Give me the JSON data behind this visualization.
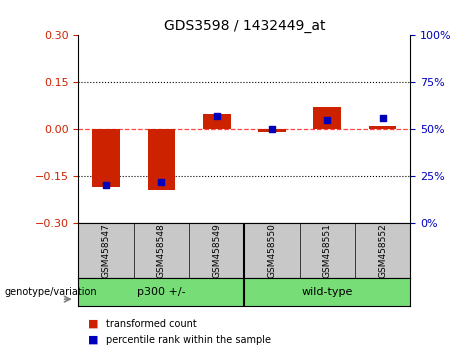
{
  "title": "GDS3598 / 1432449_at",
  "samples": [
    "GSM458547",
    "GSM458548",
    "GSM458549",
    "GSM458550",
    "GSM458551",
    "GSM458552"
  ],
  "red_bars": [
    -0.185,
    -0.195,
    0.048,
    -0.008,
    0.072,
    0.01
  ],
  "blue_squares": [
    20,
    22,
    57,
    50,
    55,
    56
  ],
  "ylim_left": [
    -0.3,
    0.3
  ],
  "ylim_right": [
    0,
    100
  ],
  "yticks_left": [
    -0.3,
    -0.15,
    0,
    0.15,
    0.3
  ],
  "yticks_right": [
    0,
    25,
    50,
    75,
    100
  ],
  "group_colors": [
    "#77DD77",
    "#77DD77"
  ],
  "group_labels": [
    "p300 +/-",
    "wild-type"
  ],
  "genotype_label": "genotype/variation",
  "legend_red": "transformed count",
  "legend_blue": "percentile rank within the sample",
  "red_color": "#CC2200",
  "blue_color": "#0000BB",
  "bar_width": 0.5,
  "square_size": 25,
  "zero_line_color": "#FF4444",
  "grid_color": "black",
  "tick_label_color_left": "#CC2200",
  "tick_label_color_right": "#0000BB",
  "bg_plot": "#FFFFFF",
  "bg_outer": "#FFFFFF",
  "sample_bg": "#C8C8C8"
}
